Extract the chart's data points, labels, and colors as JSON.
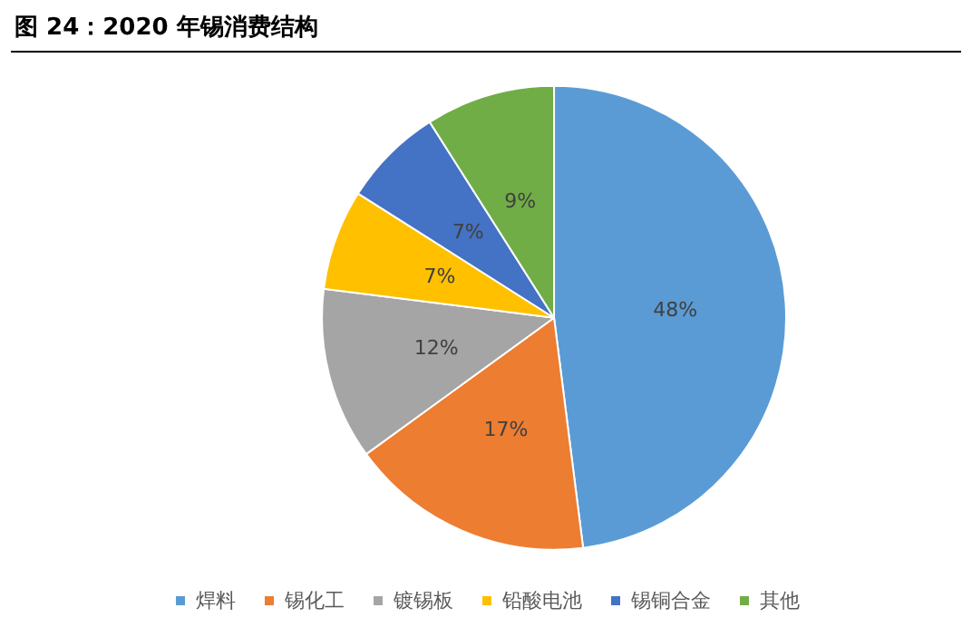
{
  "chart_data": {
    "type": "pie",
    "title": "图 24：2020 年锡消费结构",
    "categories": [
      "焊料",
      "锡化工",
      "镀锡板",
      "铅酸电池",
      "锡铜合金",
      "其他"
    ],
    "values": [
      48,
      17,
      12,
      7,
      7,
      9
    ],
    "colors": [
      "#5b9bd5",
      "#ed7d31",
      "#a5a5a5",
      "#ffc000",
      "#4472c4",
      "#70ad47"
    ],
    "value_labels": [
      "48%",
      "17%",
      "12%",
      "7%",
      "7%",
      "9%"
    ],
    "legend": "bottom"
  }
}
